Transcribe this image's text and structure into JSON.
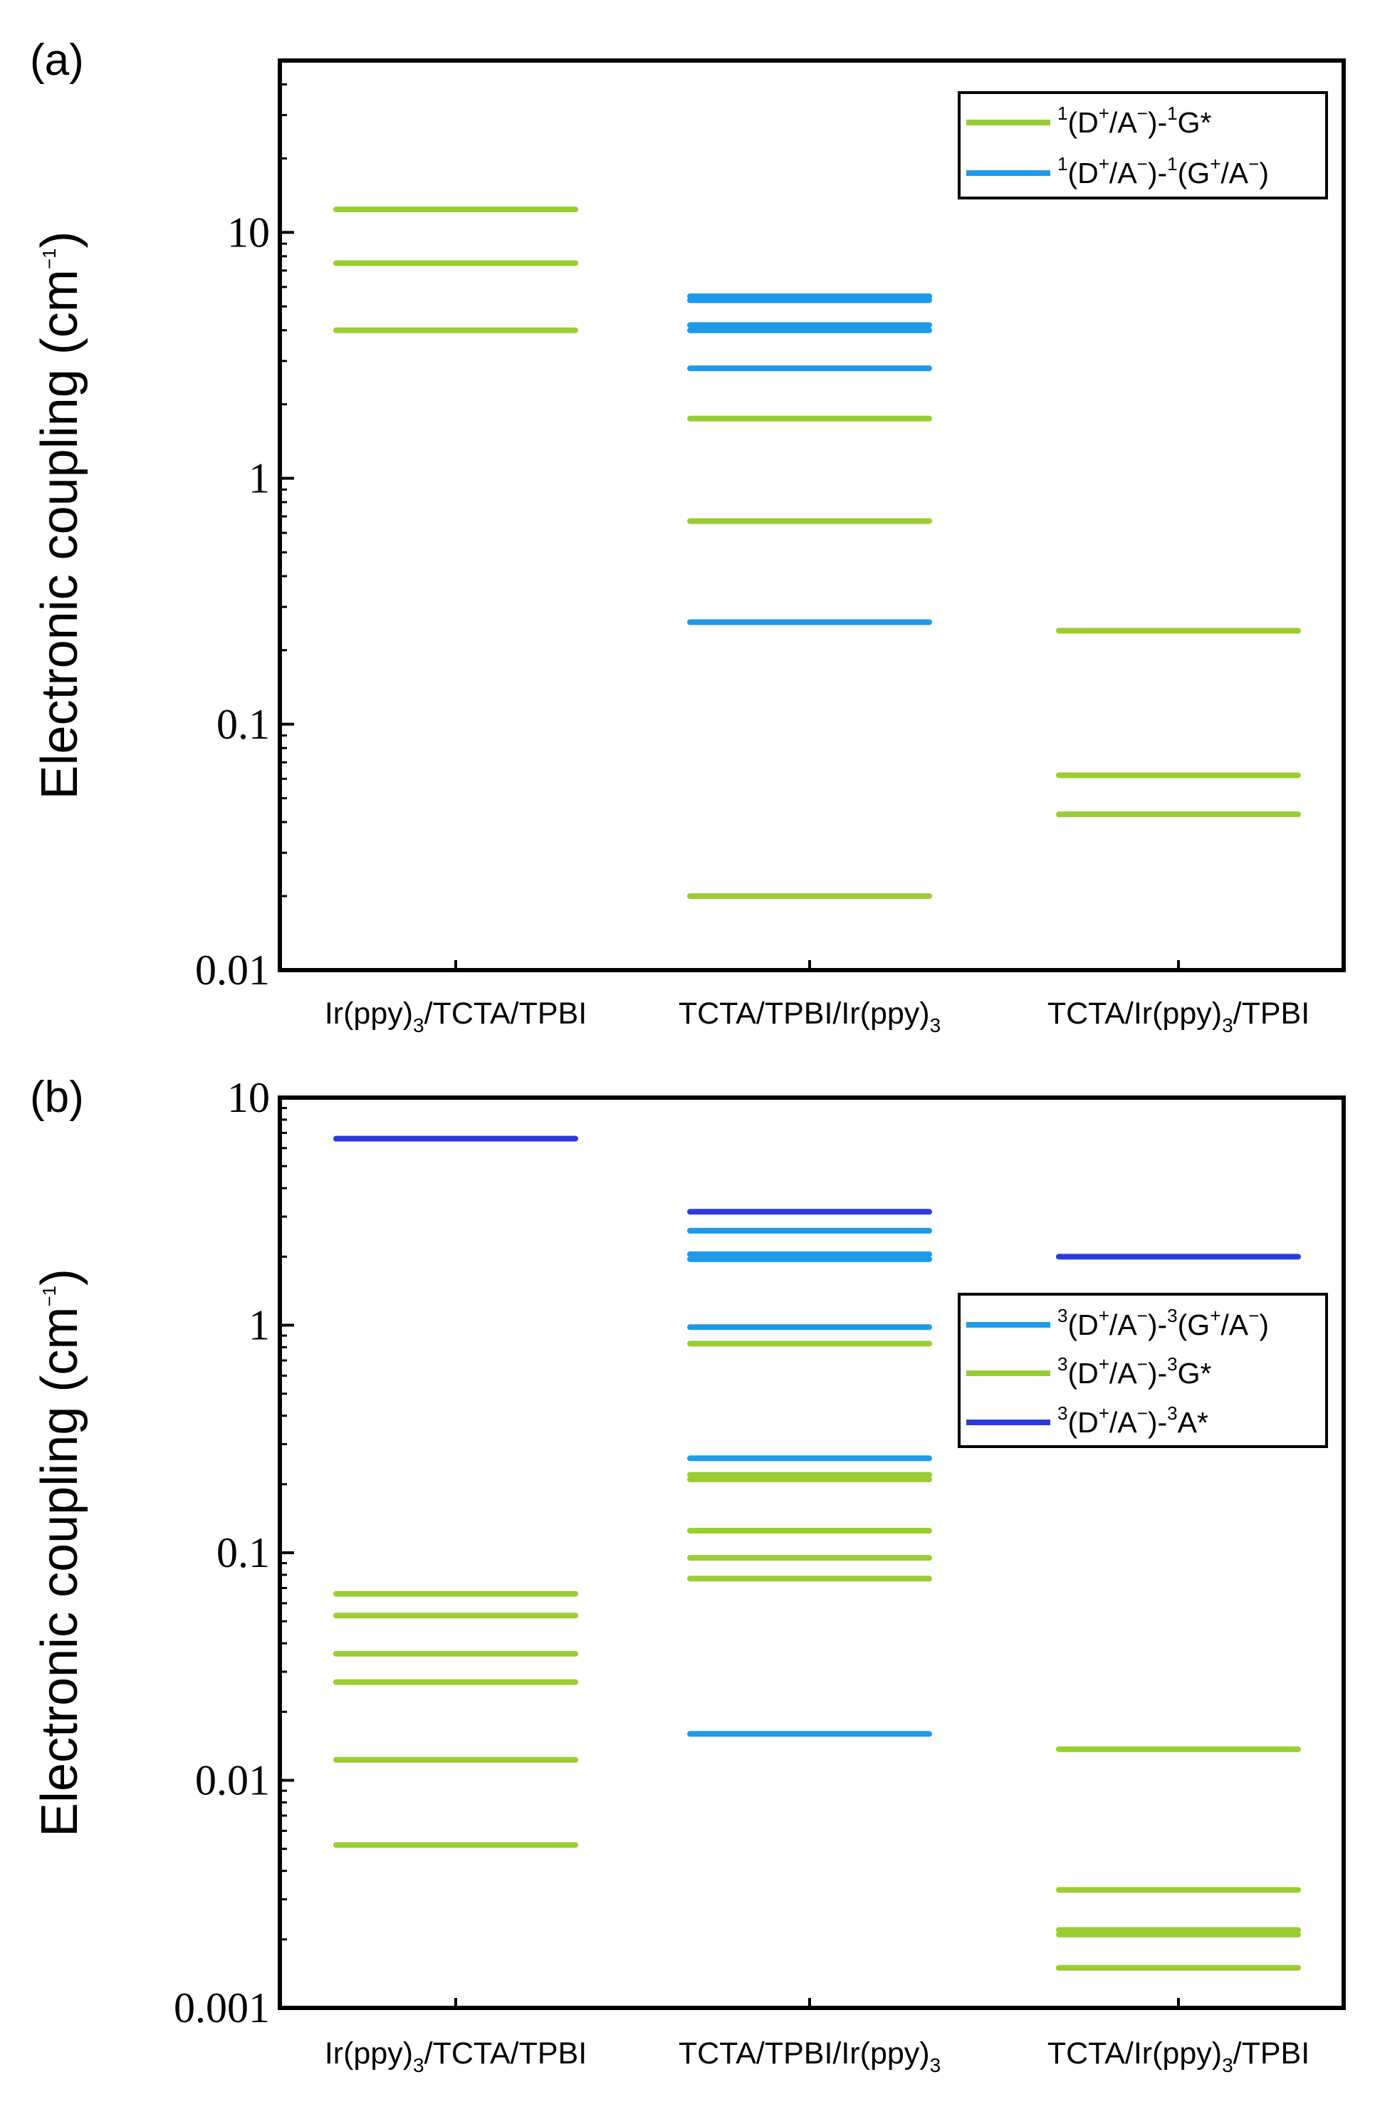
{
  "colors": {
    "green": "#9ACD32",
    "light_blue": "#1E9AEA",
    "dark_blue": "#2A3BE0"
  },
  "chart_data": [
    {
      "panel": "(a)",
      "type": "scatter",
      "scale": "log",
      "ylabel": "Electronic coupling (cm",
      "ylabel_sup": "−1",
      "ylabel_end": ")",
      "ylim": [
        0.01,
        50
      ],
      "yticks": [
        "10",
        "1",
        "0.1",
        "0.01"
      ],
      "categories": [
        {
          "pre": "Ir(ppy)",
          "sub": "3",
          "post": "/TCTA/TPBI"
        },
        {
          "pre": "TCTA/TPBI/Ir(ppy)",
          "sub": "3",
          "post": ""
        },
        {
          "pre": "TCTA/Ir(ppy)",
          "sub": "3",
          "post": "/TPBI"
        }
      ],
      "legend": [
        {
          "color_key": "green",
          "parts": [
            "1",
            "(D",
            "+",
            "/A",
            "−",
            ")-",
            "1",
            "G*"
          ]
        },
        {
          "color_key": "light_blue",
          "parts": [
            "1",
            "(D",
            "+",
            "/A",
            "−",
            ")-",
            "1",
            "(G",
            "+",
            "/A",
            "−",
            ")"
          ]
        }
      ],
      "series": [
        {
          "name": "1(D+/A−)-1G*",
          "color_key": "green",
          "values": [
            [
              12.4,
              7.5,
              4.0
            ],
            [
              1.75,
              0.67,
              0.02
            ],
            [
              0.24,
              0.062,
              0.043
            ]
          ]
        },
        {
          "name": "1(D+/A−)-1(G+/A−)",
          "color_key": "light_blue",
          "values": [
            [],
            [
              5.5,
              5.3,
              4.2,
              4.0,
              2.8,
              0.26
            ],
            []
          ]
        }
      ]
    },
    {
      "panel": "(b)",
      "type": "scatter",
      "scale": "log",
      "ylabel": "Electronic coupling (cm",
      "ylabel_sup": "−1",
      "ylabel_end": ")",
      "ylim": [
        0.001,
        10
      ],
      "yticks": [
        "10",
        "1",
        "0.1",
        "0.01",
        "0.001"
      ],
      "categories": [
        {
          "pre": "Ir(ppy)",
          "sub": "3",
          "post": "/TCTA/TPBI"
        },
        {
          "pre": "TCTA/TPBI/Ir(ppy)",
          "sub": "3",
          "post": ""
        },
        {
          "pre": "TCTA/Ir(ppy)",
          "sub": "3",
          "post": "/TPBI"
        }
      ],
      "legend": [
        {
          "color_key": "light_blue",
          "parts": [
            "3",
            "(D",
            "+",
            "/A",
            "−",
            ")-",
            "3",
            "(G",
            "+",
            "/A",
            "−",
            ")"
          ]
        },
        {
          "color_key": "green",
          "parts": [
            "3",
            "(D",
            "+",
            "/A",
            "−",
            ")-",
            "3",
            "G*"
          ]
        },
        {
          "color_key": "dark_blue",
          "parts": [
            "3",
            "(D",
            "+",
            "/A",
            "−",
            ")-",
            "3",
            "A*"
          ]
        }
      ],
      "series": [
        {
          "name": "3(D+/A−)-3(G+/A−)",
          "color_key": "light_blue",
          "values": [
            [],
            [
              2.6,
              2.05,
              1.95,
              0.98,
              0.26,
              0.016
            ],
            []
          ]
        },
        {
          "name": "3(D+/A−)-3G*",
          "color_key": "green",
          "values": [
            [
              0.066,
              0.053,
              0.036,
              0.027,
              0.0123,
              0.0052
            ],
            [
              0.83,
              0.22,
              0.21,
              0.125,
              0.095,
              0.077
            ],
            [
              0.0137,
              0.0033,
              0.0022,
              0.0021,
              0.0015
            ]
          ]
        },
        {
          "name": "3(D+/A−)-3A*",
          "color_key": "dark_blue",
          "values": [
            [
              6.6
            ],
            [
              3.15
            ],
            [
              2.0
            ]
          ]
        }
      ]
    }
  ]
}
